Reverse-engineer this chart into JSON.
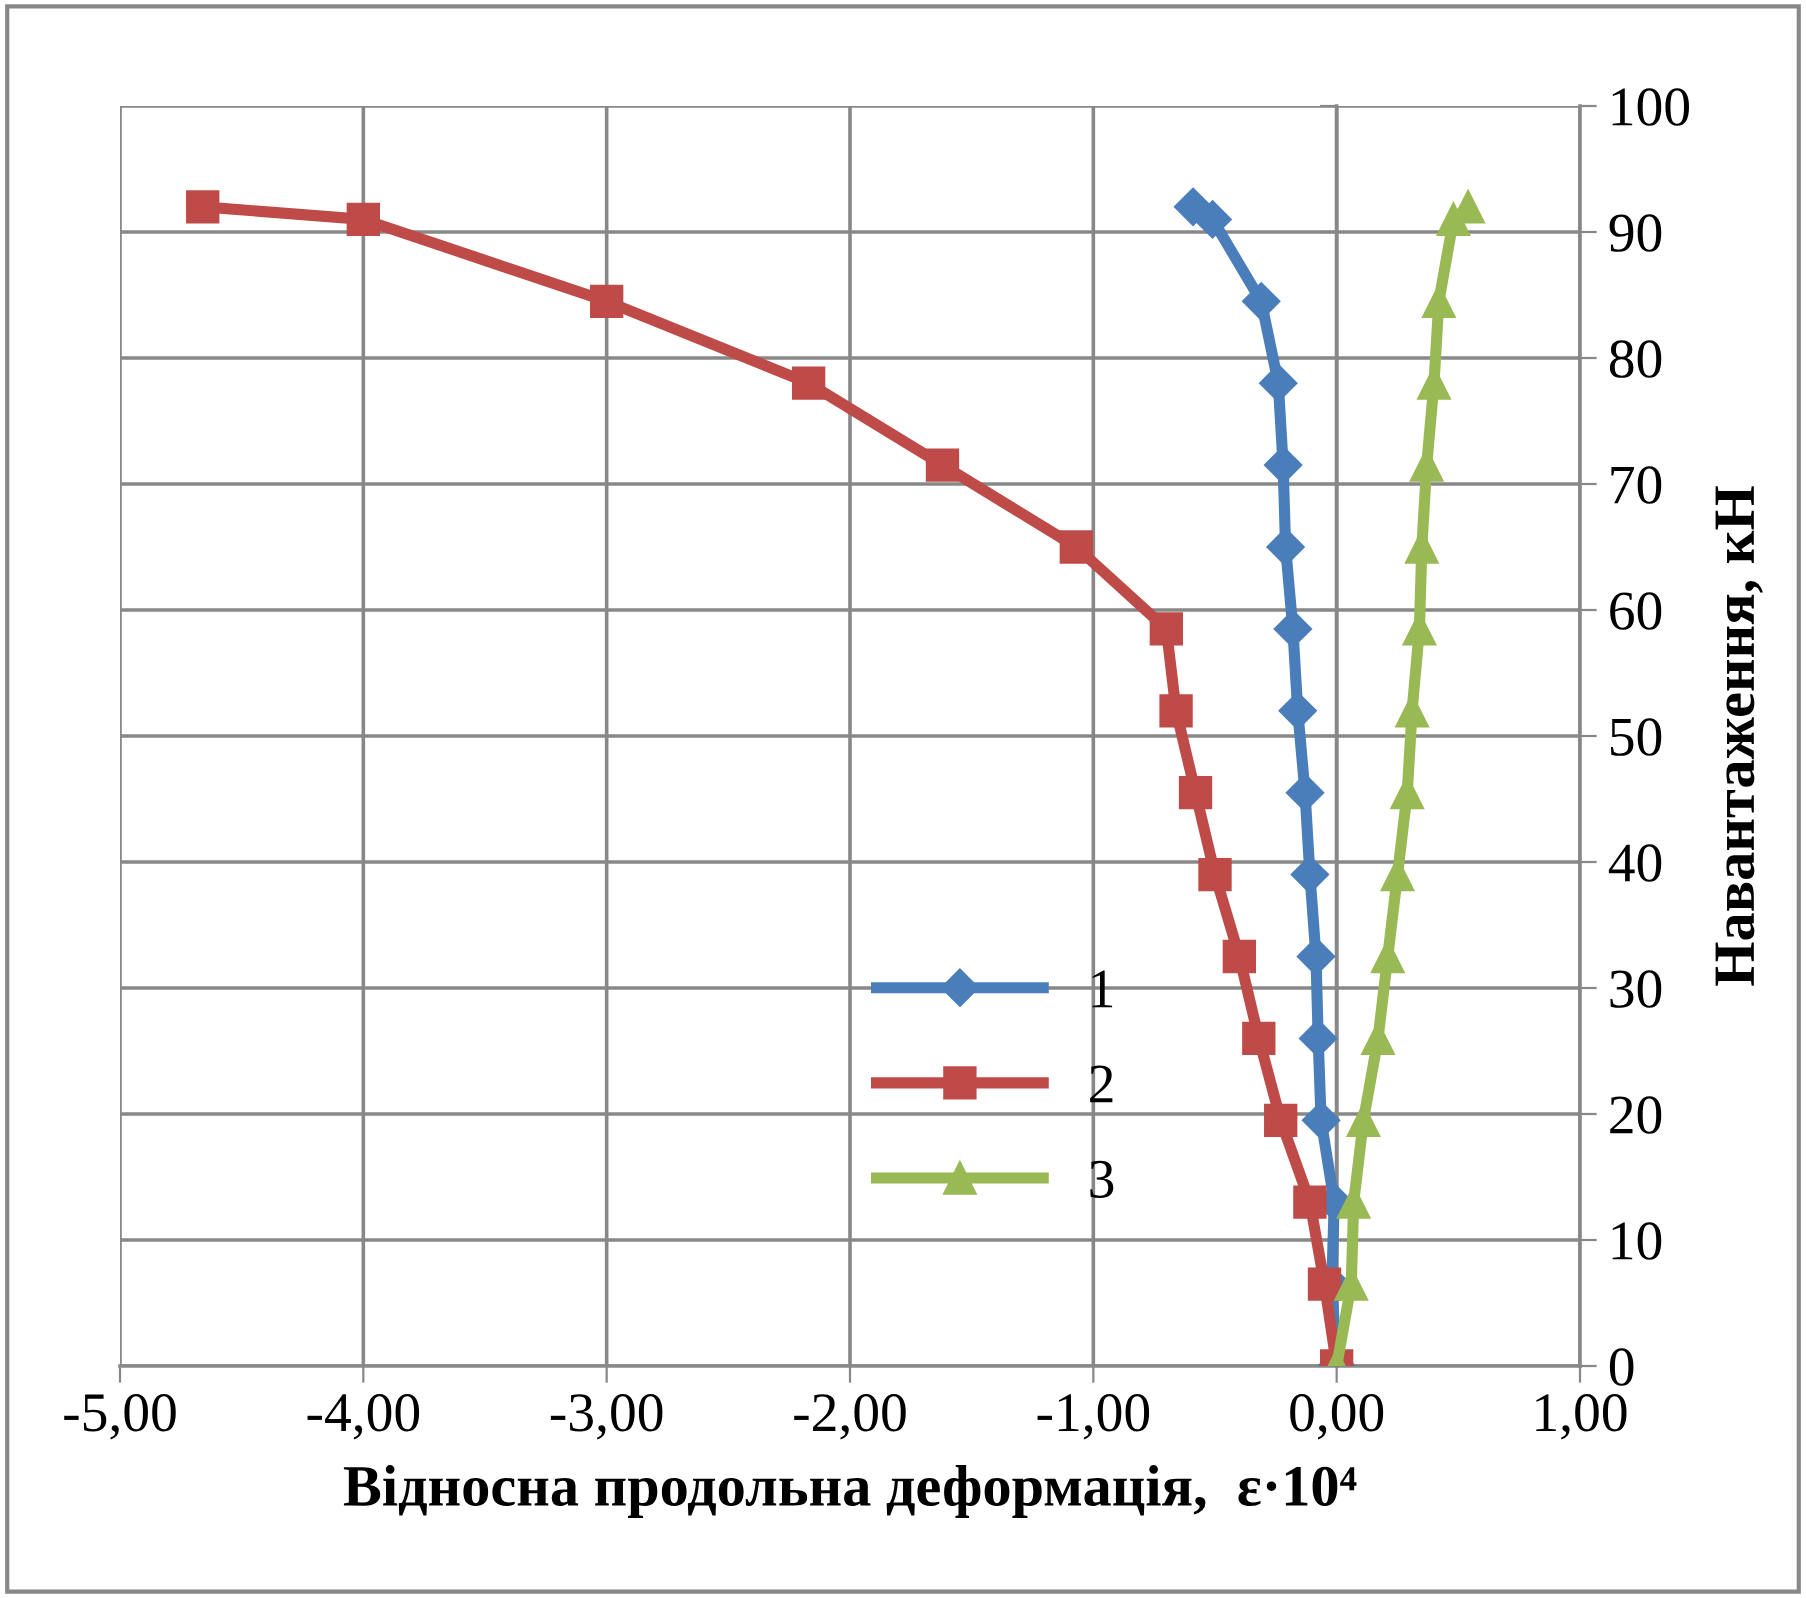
{
  "chart_data": {
    "type": "line",
    "xlabel": "Відносна продольна деформація,  ε·10⁴",
    "ylabel": "Навантаження, кН",
    "xlim": [
      -5,
      1
    ],
    "ylim": [
      0,
      100
    ],
    "xticks": [
      {
        "value": -5,
        "label": "-5,00"
      },
      {
        "value": -4,
        "label": "-4,00"
      },
      {
        "value": -3,
        "label": "-3,00"
      },
      {
        "value": -2,
        "label": "-2,00"
      },
      {
        "value": -1,
        "label": "-1,00"
      },
      {
        "value": 0,
        "label": "0,00"
      },
      {
        "value": 1,
        "label": "1,00"
      }
    ],
    "yticks": [
      0,
      10,
      20,
      30,
      40,
      50,
      60,
      70,
      80,
      90,
      100
    ],
    "grid": true,
    "legend": "center",
    "line_style": "solid",
    "series": [
      {
        "name": "1",
        "color": "#4a7ebb",
        "marker": "diamond",
        "x": [
          0,
          -0.02,
          -0.01,
          -0.064,
          -0.076,
          -0.085,
          -0.11,
          -0.13,
          -0.16,
          -0.18,
          -0.21,
          -0.22,
          -0.24,
          -0.31,
          -0.51,
          -0.59
        ],
        "values": [
          0,
          6.5,
          13,
          19.5,
          26,
          32.5,
          39,
          45.5,
          52,
          58.5,
          65,
          71.5,
          78,
          84.5,
          91,
          92
        ]
      },
      {
        "name": "2",
        "color": "#be4b48",
        "marker": "square",
        "x": [
          0,
          -0.05,
          -0.11,
          -0.23,
          -0.32,
          -0.4,
          -0.5,
          -0.58,
          -0.66,
          -0.7,
          -1.07,
          -1.62,
          -2.17,
          -3.0,
          -4.0,
          -4.66
        ],
        "values": [
          0,
          6.5,
          13,
          19.5,
          26,
          32.5,
          39,
          45.5,
          52,
          58.5,
          65,
          71.5,
          78,
          84.5,
          91,
          92
        ]
      },
      {
        "name": "3",
        "color": "#98b954",
        "marker": "triangle",
        "x": [
          0,
          0.06,
          0.07,
          0.11,
          0.17,
          0.21,
          0.25,
          0.29,
          0.31,
          0.34,
          0.35,
          0.37,
          0.4,
          0.42,
          0.48,
          0.54
        ],
        "values": [
          0,
          6.5,
          13,
          19.5,
          26,
          32.5,
          39,
          45.5,
          52,
          58.5,
          65,
          71.5,
          78,
          84.5,
          91,
          92
        ]
      }
    ]
  }
}
